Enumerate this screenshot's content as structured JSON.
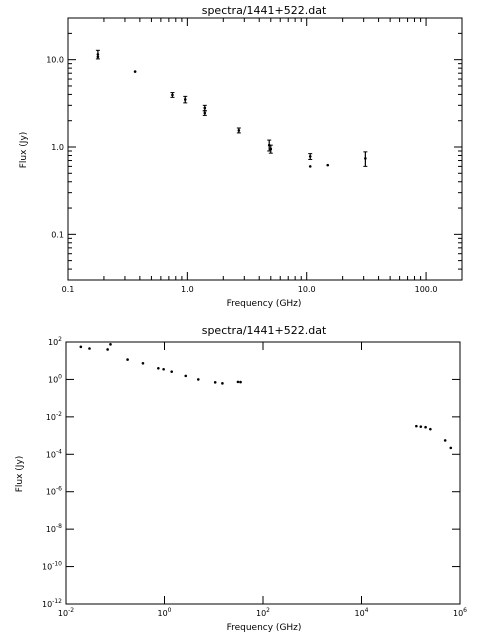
{
  "chart_data": [
    {
      "type": "scatter",
      "title": "spectra/1441+522.dat",
      "xlabel": "Frequency (GHz)",
      "ylabel": "Flux (Jy)",
      "x_scale": "log",
      "y_scale": "log",
      "xlim": [
        0.1,
        200
      ],
      "ylim": [
        0.03,
        30
      ],
      "x_ticks": [
        {
          "value": 0.1,
          "label": "0.1"
        },
        {
          "value": 1,
          "label": "1.0"
        },
        {
          "value": 10,
          "label": "10.0"
        },
        {
          "value": 100,
          "label": "100.0"
        }
      ],
      "y_ticks": [
        {
          "value": 0.1,
          "label": "0.1"
        },
        {
          "value": 1,
          "label": "1.0"
        },
        {
          "value": 10,
          "label": "10.0"
        }
      ],
      "grid": false,
      "points": [
        {
          "x": 0.178,
          "y": 11.5,
          "y_low": 10.2,
          "y_high": 12.8
        },
        {
          "x": 0.178,
          "y": 10.8
        },
        {
          "x": 0.365,
          "y": 7.3
        },
        {
          "x": 0.75,
          "y": 3.95,
          "y_low": 3.7,
          "y_high": 4.2
        },
        {
          "x": 0.96,
          "y": 3.5,
          "y_low": 3.2,
          "y_high": 3.8
        },
        {
          "x": 1.4,
          "y": 2.8,
          "y_low": 2.6,
          "y_high": 3.0
        },
        {
          "x": 1.4,
          "y": 2.45,
          "y_low": 2.3,
          "y_high": 2.6
        },
        {
          "x": 2.7,
          "y": 1.55,
          "y_low": 1.45,
          "y_high": 1.65
        },
        {
          "x": 4.85,
          "y": 1.05,
          "y_low": 0.9,
          "y_high": 1.2
        },
        {
          "x": 5.0,
          "y": 0.95,
          "y_low": 0.85,
          "y_high": 1.05
        },
        {
          "x": 10.7,
          "y": 0.78,
          "y_low": 0.72,
          "y_high": 0.84
        },
        {
          "x": 10.7,
          "y": 0.6
        },
        {
          "x": 15.0,
          "y": 0.62
        },
        {
          "x": 31.0,
          "y": 0.74,
          "y_low": 0.6,
          "y_high": 0.88
        }
      ]
    },
    {
      "type": "scatter",
      "title": "spectra/1441+522.dat",
      "xlabel": "Frequency (GHz)",
      "ylabel": "Flux (Jy)",
      "x_scale": "log",
      "y_scale": "log",
      "xlim": [
        0.01,
        1000000
      ],
      "ylim": [
        1e-12,
        100
      ],
      "x_ticks": [
        {
          "value": 0.01,
          "base": "10",
          "exp": "-2"
        },
        {
          "value": 1,
          "base": "10",
          "exp": "0"
        },
        {
          "value": 100,
          "base": "10",
          "exp": "2"
        },
        {
          "value": 10000,
          "base": "10",
          "exp": "4"
        },
        {
          "value": 1000000,
          "base": "10",
          "exp": "6"
        }
      ],
      "y_ticks": [
        {
          "value": 100,
          "base": "10",
          "exp": "2"
        },
        {
          "value": 1,
          "base": "10",
          "exp": "0"
        },
        {
          "value": 0.01,
          "base": "10",
          "exp": "-2"
        },
        {
          "value": 0.0001,
          "base": "10",
          "exp": "-4"
        },
        {
          "value": 1e-06,
          "base": "10",
          "exp": "-6"
        },
        {
          "value": 1e-08,
          "base": "10",
          "exp": "-8"
        },
        {
          "value": 1e-10,
          "base": "10",
          "exp": "-10"
        },
        {
          "value": 1e-12,
          "base": "10",
          "exp": "-12"
        }
      ],
      "grid": false,
      "points": [
        {
          "x": 0.02,
          "y": 55
        },
        {
          "x": 0.03,
          "y": 45
        },
        {
          "x": 0.07,
          "y": 40
        },
        {
          "x": 0.08,
          "y": 75
        },
        {
          "x": 0.178,
          "y": 11.5
        },
        {
          "x": 0.365,
          "y": 7.3
        },
        {
          "x": 0.75,
          "y": 3.95
        },
        {
          "x": 0.96,
          "y": 3.5
        },
        {
          "x": 1.4,
          "y": 2.6
        },
        {
          "x": 2.7,
          "y": 1.55
        },
        {
          "x": 4.85,
          "y": 1.0
        },
        {
          "x": 10.7,
          "y": 0.7
        },
        {
          "x": 15.0,
          "y": 0.62
        },
        {
          "x": 31.0,
          "y": 0.74
        },
        {
          "x": 35.0,
          "y": 0.72
        },
        {
          "x": 130000,
          "y": 0.0032
        },
        {
          "x": 160000,
          "y": 0.003
        },
        {
          "x": 200000,
          "y": 0.0028
        },
        {
          "x": 250000,
          "y": 0.0022
        },
        {
          "x": 500000,
          "y": 0.00055
        },
        {
          "x": 650000,
          "y": 0.00022
        }
      ]
    }
  ]
}
